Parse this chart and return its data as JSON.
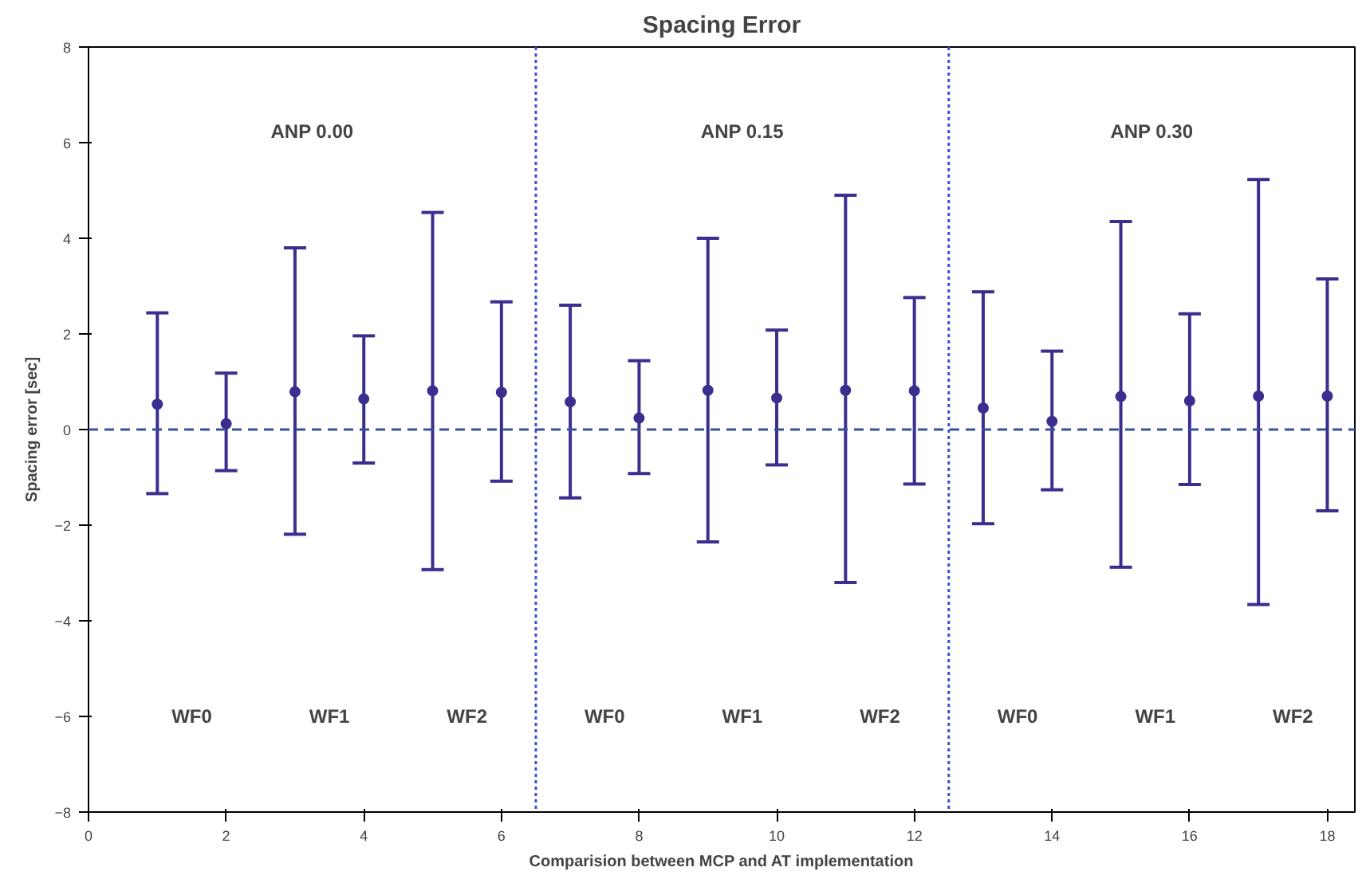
{
  "chart_data": {
    "type": "scatter",
    "title": "Spacing Error",
    "xlabel": "Comparision between MCP and AT implementation",
    "ylabel": "Spacing error [sec]",
    "x": [
      1,
      2,
      3,
      4,
      5,
      6,
      7,
      8,
      9,
      10,
      11,
      12,
      13,
      14,
      15,
      16,
      17,
      18
    ],
    "series": [
      {
        "color": "#3a2f8f",
        "values": [
          0.53,
          0.12,
          0.79,
          0.64,
          0.81,
          0.78,
          0.58,
          0.24,
          0.82,
          0.66,
          0.82,
          0.81,
          0.45,
          0.17,
          0.69,
          0.6,
          0.7,
          0.7
        ],
        "errors": [
          [
            -1.34,
            2.44
          ],
          [
            -0.86,
            1.18
          ],
          [
            -2.19,
            3.8
          ],
          [
            -0.7,
            1.96
          ],
          [
            -2.93,
            4.54
          ],
          [
            -1.08,
            2.67
          ],
          [
            -1.43,
            2.6
          ],
          [
            -0.92,
            1.44
          ],
          [
            -2.35,
            4.0
          ],
          [
            -0.74,
            2.08
          ],
          [
            -3.2,
            4.9
          ],
          [
            -1.14,
            2.76
          ],
          [
            -1.97,
            2.88
          ],
          [
            -1.26,
            1.64
          ],
          [
            -2.88,
            4.35
          ],
          [
            -1.15,
            2.42
          ],
          [
            -3.66,
            5.23
          ],
          [
            -1.7,
            3.15
          ]
        ]
      }
    ],
    "marker": "circle",
    "grid": false,
    "xlim": [
      0,
      18.4
    ],
    "xticks": [
      0,
      2,
      4,
      6,
      8,
      10,
      12,
      14,
      16,
      18
    ],
    "ylim": [
      -8,
      8
    ],
    "yticks": [
      -8,
      -6,
      -4,
      -2,
      0,
      2,
      4,
      6,
      8
    ],
    "ref_lines": [
      {
        "axis": "y",
        "value": 0,
        "label": null,
        "color": "#3a4fa0",
        "line_style": "dashed"
      },
      {
        "axis": "x",
        "value": 6.5,
        "label": null,
        "color": "#3a4fd0",
        "line_style": "dotted"
      },
      {
        "axis": "x",
        "value": 12.5,
        "label": null,
        "color": "#3a4fd0",
        "line_style": "dotted"
      }
    ],
    "annotations": [
      "ANP 0.00",
      "ANP 0.15",
      "ANP 0.30",
      "WF0",
      "WF1",
      "WF2",
      "WF0",
      "WF1",
      "WF2",
      "WF0",
      "WF1",
      "WF2"
    ]
  }
}
